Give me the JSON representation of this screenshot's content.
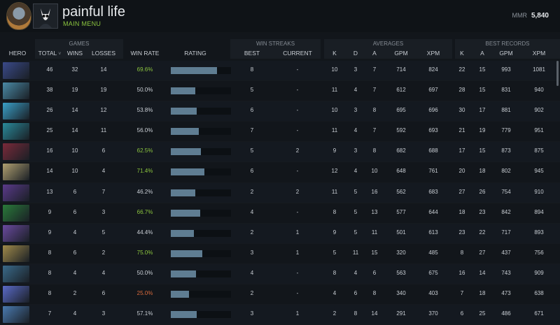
{
  "profile": {
    "name": "painful life",
    "subtitle": "MAIN MENU",
    "mmr_label": "MMR",
    "mmr_value": "5,840"
  },
  "groups": {
    "games": "GAMES",
    "win_streaks": "WIN STREAKS",
    "averages": "AVERAGES",
    "best_records": "BEST RECORDS"
  },
  "headers": {
    "hero": "HERO",
    "total": "TOTAL",
    "wins": "WINS",
    "losses": "LOSSES",
    "win_rate": "WIN RATE",
    "rating": "RATING",
    "best": "BEST",
    "current": "CURRENT",
    "k": "K",
    "d": "D",
    "a": "A",
    "gpm": "GPM",
    "xpm": "XPM",
    "b_k": "K",
    "b_a": "A",
    "b_gpm": "GPM",
    "b_xpm": "XPM"
  },
  "colors": {
    "good_winrate": "#8cc63f",
    "bad_winrate": "#d96a3c",
    "rating_bar": "#5f7d92"
  },
  "rows": [
    {
      "hero_color": "#3a4a8a",
      "total": "46",
      "wins": "32",
      "losses": "14",
      "win_rate": "69.6%",
      "win_rate_status": "good",
      "rating": 0.92,
      "best": "8",
      "current": "-",
      "k": "10",
      "d": "3",
      "a": "7",
      "gpm": "714",
      "xpm": "824",
      "b_k": "22",
      "b_a": "15",
      "b_gpm": "993",
      "b_xpm": "1081"
    },
    {
      "hero_color": "#4a8aa6",
      "total": "38",
      "wins": "19",
      "losses": "19",
      "win_rate": "50.0%",
      "win_rate_status": "neutral",
      "rating": 0.48,
      "best": "5",
      "current": "-",
      "k": "11",
      "d": "4",
      "a": "7",
      "gpm": "612",
      "xpm": "697",
      "b_k": "28",
      "b_a": "15",
      "b_gpm": "831",
      "b_xpm": "940"
    },
    {
      "hero_color": "#3aa0c8",
      "total": "26",
      "wins": "14",
      "losses": "12",
      "win_rate": "53.8%",
      "win_rate_status": "neutral",
      "rating": 0.52,
      "best": "6",
      "current": "-",
      "k": "10",
      "d": "3",
      "a": "8",
      "gpm": "695",
      "xpm": "696",
      "b_k": "30",
      "b_a": "17",
      "b_gpm": "881",
      "b_xpm": "902"
    },
    {
      "hero_color": "#2a8a9a",
      "total": "25",
      "wins": "14",
      "losses": "11",
      "win_rate": "56.0%",
      "win_rate_status": "neutral",
      "rating": 0.56,
      "best": "7",
      "current": "-",
      "k": "11",
      "d": "4",
      "a": "7",
      "gpm": "592",
      "xpm": "693",
      "b_k": "21",
      "b_a": "19",
      "b_gpm": "779",
      "b_xpm": "951"
    },
    {
      "hero_color": "#7a2a3a",
      "total": "16",
      "wins": "10",
      "losses": "6",
      "win_rate": "62.5%",
      "win_rate_status": "good",
      "rating": 0.6,
      "best": "5",
      "current": "2",
      "k": "9",
      "d": "3",
      "a": "8",
      "gpm": "682",
      "xpm": "688",
      "b_k": "17",
      "b_a": "15",
      "b_gpm": "873",
      "b_xpm": "875"
    },
    {
      "hero_color": "#b0a070",
      "total": "14",
      "wins": "10",
      "losses": "4",
      "win_rate": "71.4%",
      "win_rate_status": "good",
      "rating": 0.66,
      "best": "6",
      "current": "-",
      "k": "12",
      "d": "4",
      "a": "10",
      "gpm": "648",
      "xpm": "761",
      "b_k": "20",
      "b_a": "18",
      "b_gpm": "802",
      "b_xpm": "945"
    },
    {
      "hero_color": "#5a3a8a",
      "total": "13",
      "wins": "6",
      "losses": "7",
      "win_rate": "46.2%",
      "win_rate_status": "neutral",
      "rating": 0.48,
      "best": "2",
      "current": "2",
      "k": "11",
      "d": "5",
      "a": "16",
      "gpm": "562",
      "xpm": "683",
      "b_k": "27",
      "b_a": "26",
      "b_gpm": "754",
      "b_xpm": "910"
    },
    {
      "hero_color": "#2a7a3a",
      "total": "9",
      "wins": "6",
      "losses": "3",
      "win_rate": "66.7%",
      "win_rate_status": "good",
      "rating": 0.58,
      "best": "4",
      "current": "-",
      "k": "8",
      "d": "5",
      "a": "13",
      "gpm": "577",
      "xpm": "644",
      "b_k": "18",
      "b_a": "23",
      "b_gpm": "842",
      "b_xpm": "894"
    },
    {
      "hero_color": "#6a4aa0",
      "total": "9",
      "wins": "4",
      "losses": "5",
      "win_rate": "44.4%",
      "win_rate_status": "neutral",
      "rating": 0.46,
      "best": "2",
      "current": "1",
      "k": "9",
      "d": "5",
      "a": "11",
      "gpm": "501",
      "xpm": "613",
      "b_k": "23",
      "b_a": "22",
      "b_gpm": "717",
      "b_xpm": "893"
    },
    {
      "hero_color": "#a08a4a",
      "total": "8",
      "wins": "6",
      "losses": "2",
      "win_rate": "75.0%",
      "win_rate_status": "good",
      "rating": 0.62,
      "best": "3",
      "current": "1",
      "k": "5",
      "d": "11",
      "a": "15",
      "gpm": "320",
      "xpm": "485",
      "b_k": "8",
      "b_a": "27",
      "b_gpm": "437",
      "b_xpm": "756"
    },
    {
      "hero_color": "#3a6a8a",
      "total": "8",
      "wins": "4",
      "losses": "4",
      "win_rate": "50.0%",
      "win_rate_status": "neutral",
      "rating": 0.5,
      "best": "4",
      "current": "-",
      "k": "8",
      "d": "4",
      "a": "6",
      "gpm": "563",
      "xpm": "675",
      "b_k": "16",
      "b_a": "14",
      "b_gpm": "743",
      "b_xpm": "909"
    },
    {
      "hero_color": "#5a6ac8",
      "total": "8",
      "wins": "2",
      "losses": "6",
      "win_rate": "25.0%",
      "win_rate_status": "bad",
      "rating": 0.36,
      "best": "2",
      "current": "-",
      "k": "4",
      "d": "6",
      "a": "8",
      "gpm": "340",
      "xpm": "403",
      "b_k": "7",
      "b_a": "18",
      "b_gpm": "473",
      "b_xpm": "638"
    },
    {
      "hero_color": "#4a7ab0",
      "total": "7",
      "wins": "4",
      "losses": "3",
      "win_rate": "57.1%",
      "win_rate_status": "neutral",
      "rating": 0.52,
      "best": "3",
      "current": "1",
      "k": "2",
      "d": "8",
      "a": "14",
      "gpm": "291",
      "xpm": "370",
      "b_k": "6",
      "b_a": "25",
      "b_gpm": "486",
      "b_xpm": "671"
    }
  ]
}
